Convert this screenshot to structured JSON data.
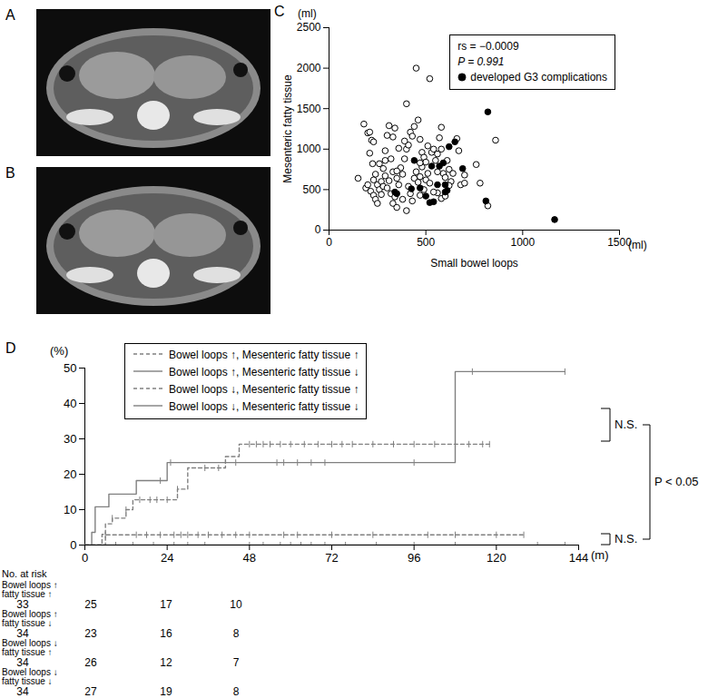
{
  "chart_data": [
    {
      "type": "image",
      "title": "A"
    },
    {
      "type": "image",
      "title": "B"
    },
    {
      "type": "scatter",
      "title": "C",
      "x_label": "Small bowel loops",
      "y_label": "Mesenteric fatty tissue",
      "x_unit": "(ml)",
      "y_unit": "(ml)",
      "xlim": [
        0,
        1500
      ],
      "xticks": [
        0,
        500,
        1000,
        1500
      ],
      "ylim": [
        0,
        2500
      ],
      "yticks": [
        0,
        500,
        1000,
        1500,
        2000,
        2500
      ],
      "legend": "top-right",
      "annotations": [
        "rs = −0.0009",
        "P = 0.991"
      ],
      "series": [
        {
          "color": "#000000",
          "marker": "open circle",
          "x": [
            150,
            180,
            200,
            210,
            220,
            230,
            210,
            225,
            190,
            200,
            215,
            230,
            240,
            250,
            260,
            270,
            280,
            240,
            260,
            280,
            290,
            300,
            310,
            330,
            340,
            320,
            330,
            310,
            300,
            320,
            340,
            350,
            360,
            370,
            380,
            390,
            400,
            410,
            420,
            430,
            440,
            450,
            400,
            520,
            460,
            470,
            480,
            490,
            500,
            380,
            400,
            420,
            430,
            440,
            450,
            460,
            470,
            480,
            490,
            500,
            510,
            520,
            530,
            540,
            550,
            560,
            570,
            580,
            590,
            600,
            610,
            620,
            630,
            640,
            660,
            670,
            680,
            700,
            760,
            780,
            820,
            860,
            560,
            580,
            600,
            620,
            540,
            470,
            410,
            350,
            290,
            270,
            250,
            360,
            390,
            510,
            560,
            470,
            330,
            290,
            230,
            580,
            350,
            700
          ],
          "values": [
            640,
            1310,
            1200,
            1210,
            1110,
            1090,
            950,
            820,
            520,
            560,
            480,
            430,
            380,
            560,
            500,
            600,
            540,
            690,
            820,
            760,
            980,
            1170,
            1290,
            1150,
            1260,
            880,
            720,
            610,
            520,
            450,
            410,
            640,
            560,
            770,
            690,
            880,
            1000,
            1050,
            1210,
            1160,
            1280,
            2000,
            1560,
            1870,
            1360,
            1120,
            960,
            900,
            840,
            380,
            240,
            450,
            360,
            640,
            720,
            590,
            660,
            780,
            500,
            620,
            700,
            580,
            960,
            1000,
            860,
            940,
            1140,
            1000,
            700,
            650,
            860,
            750,
            600,
            700,
            1130,
            980,
            560,
            580,
            810,
            580,
            300,
            1110,
            460,
            390,
            420,
            550,
            470,
            430,
            540,
            730,
            860,
            440,
            330,
            1010,
            1100,
            1040,
            720,
            830,
            330,
            670,
            620,
            1270,
            280,
            680
          ]
        },
        {
          "name": "developed G3 complications",
          "color": "#000000",
          "marker": "filled circle",
          "x": [
            1165,
            820,
            810,
            620,
            650,
            690,
            590,
            600,
            560,
            520,
            540,
            530,
            570,
            425,
            440,
            340,
            350,
            470,
            600,
            610,
            500
          ],
          "values": [
            130,
            1460,
            360,
            1030,
            1090,
            760,
            830,
            470,
            560,
            340,
            350,
            790,
            790,
            510,
            860,
            470,
            450,
            520,
            560,
            490,
            420
          ]
        }
      ]
    },
    {
      "type": "step",
      "title": "D",
      "x_unit": "(m)",
      "y_unit": "(%)",
      "xlim": [
        0,
        144
      ],
      "xticks": [
        0,
        24,
        48,
        72,
        96,
        120,
        144
      ],
      "ylim": [
        0,
        50
      ],
      "yticks": [
        0,
        10,
        20,
        30,
        40,
        50
      ],
      "legend": "top-left",
      "annotations": [
        "N.S.",
        "N.S.",
        "P < 0.05"
      ],
      "series": [
        {
          "name": "Bowel loops ↑, Mesenteric fatty tissue ↑",
          "color": "#808080",
          "line_style": "dashed",
          "x": [
            0,
            5,
            6,
            8,
            12,
            14,
            27,
            30,
            41,
            45,
            118
          ],
          "values": [
            0,
            3,
            6,
            7.6,
            10,
            12.8,
            15.8,
            21.8,
            25,
            28.5,
            28.5
          ],
          "censored": [
            8,
            12,
            16,
            19,
            21,
            24,
            27,
            35,
            39,
            48,
            50,
            52,
            54,
            57,
            60,
            64,
            68,
            72,
            75,
            78,
            84,
            90,
            96,
            102,
            108,
            112,
            116,
            118
          ]
        },
        {
          "name": "Bowel loops ↑, Mesenteric fatty tissue ↓",
          "color": "#808080",
          "line_style": "solid",
          "x": [
            0,
            2,
            3,
            7,
            15,
            24,
            108,
            140
          ],
          "values": [
            0,
            3.6,
            10.8,
            14.4,
            18.2,
            23.3,
            49,
            49
          ],
          "censored": [
            22,
            25,
            44,
            56,
            58,
            62,
            66,
            70,
            96,
            113,
            140
          ]
        },
        {
          "name": "Bowel loops ↓, Mesenteric fatty tissue ↑",
          "color": "#808080",
          "line_style": "dashed",
          "x": [
            0,
            6,
            128
          ],
          "values": [
            0,
            2.9,
            2.9
          ],
          "censored": [
            6,
            15,
            18,
            22,
            26,
            28,
            30,
            33,
            36,
            40,
            44,
            48,
            58,
            62,
            72,
            84,
            100,
            108,
            120,
            128
          ]
        },
        {
          "name": "Bowel loops ↓, Mesenteric fatty tissue ↓",
          "color": "#808080",
          "line_style": "solid",
          "x": [
            0,
            140
          ],
          "values": [
            0,
            0
          ],
          "censored": [
            9,
            14,
            20,
            26,
            30,
            35,
            48,
            52,
            57,
            60,
            63,
            66,
            70,
            76,
            85,
            96,
            108,
            132,
            140
          ]
        }
      ],
      "risk_table": {
        "title": "No. at risk",
        "rows": [
          {
            "label": [
              "Bowel loops ↑",
              "fatty tissue ↑"
            ],
            "values": [
              33,
              25,
              17,
              10
            ]
          },
          {
            "label": [
              "Bowel loops ↑",
              "fatty tissue ↓"
            ],
            "values": [
              34,
              23,
              16,
              8
            ]
          },
          {
            "label": [
              "Bowel loops ↓",
              "fatty tissue ↑"
            ],
            "values": [
              34,
              26,
              12,
              7
            ]
          },
          {
            "label": [
              "Bowel loops ↓",
              "fatty tissue ↓"
            ],
            "values": [
              34,
              27,
              19,
              8
            ]
          }
        ]
      }
    }
  ]
}
